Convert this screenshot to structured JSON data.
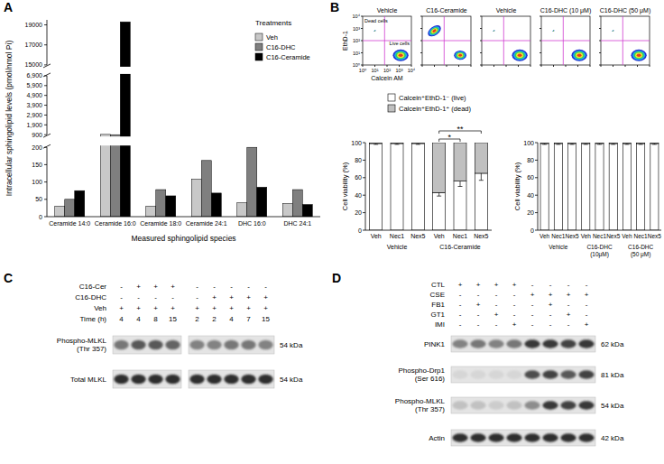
{
  "panel_labels": [
    "A",
    "B",
    "C",
    "D"
  ],
  "chart_data": [
    {
      "type": "bar",
      "y_label": "Intracellular sphingolipid levels (pmol/nmol Pi)",
      "x_label": "Measured sphingolipid species",
      "legend_title": "Treatments",
      "legend": "upper right",
      "categories": [
        "Ceramide 14:0",
        "Ceramide 16:0",
        "Ceramide 18:0",
        "Ceramide 24:1",
        "DHC 16:0",
        "DHC 24:1"
      ],
      "series": [
        {
          "name": "Veh",
          "color": "#c8c8c8",
          "values": [
            30,
            930,
            30,
            108,
            40,
            38
          ]
        },
        {
          "name": "C16-DHC",
          "color": "#7f7f7f",
          "values": [
            50,
            880,
            78,
            162,
            200,
            78
          ]
        },
        {
          "name": "C16-Ceramide",
          "color": "#000000",
          "values": [
            75,
            19300,
            60,
            68,
            85,
            35
          ]
        }
      ],
      "ylim": [
        0,
        19500
      ],
      "y_breaks": [
        [
          200,
          900
        ],
        [
          6900,
          15000
        ]
      ],
      "yticks": [
        0,
        50,
        100,
        150,
        200,
        900,
        {
          "value": 1900,
          "label": "1,900"
        },
        {
          "value": 2900,
          "label": "2,900"
        },
        {
          "value": 3900,
          "label": "3,900"
        },
        {
          "value": 4900,
          "label": "4,900"
        },
        {
          "value": 5900,
          "label": "5,900"
        },
        {
          "value": 6900,
          "label": "6,900"
        },
        15000,
        17000,
        19000
      ]
    },
    {
      "type": "bar",
      "stacked": true,
      "y_label": "Cell viability (%)",
      "legend": "top",
      "categories": [
        "Veh",
        "Nec1",
        "Nex5",
        "Veh",
        "Nec1",
        "Nex5"
      ],
      "groups": [
        "Vehicle",
        "C16-Ceramide"
      ],
      "series": [
        {
          "name": "Calcein⁺EthD-1⁻ (live)",
          "color": "#ffffff",
          "values": [
            99,
            99,
            99,
            43,
            56,
            65
          ],
          "errors": [
            1,
            1,
            1,
            4,
            6,
            8
          ]
        },
        {
          "name": "Calcein⁺EthD-1⁺ (dead)",
          "color": "#c0c0c0",
          "values": [
            1,
            1,
            1,
            57,
            44,
            35
          ]
        }
      ],
      "ylim": [
        0,
        100
      ],
      "yticks": [
        0,
        20,
        40,
        60,
        80,
        100
      ],
      "annotations": [
        {
          "text": "*",
          "from": 3,
          "to": 4
        },
        {
          "text": "**",
          "from": 3,
          "to": 5
        }
      ]
    },
    {
      "type": "bar",
      "stacked": true,
      "y_label": "Cell viability (%)",
      "categories": [
        "Veh",
        "Nec1",
        "Nex5",
        "Veh",
        "Nec1",
        "Nex5",
        "Veh",
        "Nec1",
        "Nex5"
      ],
      "groups": [
        "Vehicle",
        "C16-DHC (10μM)",
        "C16-DHC (50 μM)"
      ],
      "series": [
        {
          "color": "#ffffff",
          "values": [
            99,
            99,
            99,
            99,
            99,
            99,
            99,
            99,
            99
          ],
          "errors": [
            1,
            1,
            1,
            1,
            1,
            1,
            1,
            1,
            1
          ]
        },
        {
          "color": "#c0c0c0",
          "values": [
            1,
            1,
            1,
            1,
            1,
            1,
            1,
            1,
            1
          ]
        }
      ],
      "ylim": [
        0,
        100
      ],
      "yticks": [
        0,
        20,
        40,
        60,
        80,
        100
      ]
    }
  ],
  "flow_cytometry": {
    "x_label": "Calcein AM",
    "y_label": "EthD-1",
    "ticks": [
      "10⁰",
      "10¹",
      "10²",
      "10³",
      "10⁴"
    ],
    "gate_labels": [
      "Dead cells",
      "Live cells"
    ],
    "plots": [
      {
        "title": "Vehicle",
        "dead_percent": 1
      },
      {
        "title": "C16-Ceramide",
        "dead_percent": 57
      },
      {
        "title": "Vehicle",
        "dead_percent": 1
      },
      {
        "title": "C16-DHC (10 μM)",
        "dead_percent": 1
      },
      {
        "title": "C16-DHC (50 μM)",
        "dead_percent": 1
      }
    ]
  },
  "blot_c": {
    "conditions": [
      {
        "label": "C16-Cer",
        "values": [
          "-",
          "+",
          "+",
          "+",
          "-",
          "-",
          "-",
          "-",
          "-"
        ]
      },
      {
        "label": "C16-DHC",
        "values": [
          "-",
          "-",
          "-",
          "-",
          "-",
          "+",
          "+",
          "+",
          "+"
        ]
      },
      {
        "label": "Veh",
        "values": [
          "+",
          "+",
          "+",
          "+",
          "+",
          "+",
          "+",
          "+",
          "+"
        ]
      },
      {
        "label": "Time (h)",
        "values": [
          4,
          4,
          8,
          15,
          2,
          2,
          4,
          7,
          15
        ]
      }
    ],
    "bands": [
      {
        "label": "Phospho-MLKL (Thr 357)",
        "size": "54 kDa",
        "intensity": [
          0.55,
          0.7,
          0.7,
          0.65,
          0.5,
          0.5,
          0.55,
          0.55,
          0.5
        ]
      },
      {
        "label": "Total MLKL",
        "size": "54 kDa",
        "intensity": [
          0.9,
          0.9,
          0.9,
          0.9,
          0.9,
          0.9,
          0.9,
          0.9,
          0.9
        ]
      }
    ]
  },
  "blot_d": {
    "conditions": [
      {
        "label": "CTL",
        "values": [
          "+",
          "+",
          "+",
          "+",
          "-",
          "-",
          "-",
          "-"
        ]
      },
      {
        "label": "CSE",
        "values": [
          "-",
          "-",
          "-",
          "-",
          "+",
          "+",
          "+",
          "+"
        ]
      },
      {
        "label": "FB1",
        "values": [
          "-",
          "+",
          "-",
          "-",
          "-",
          "+",
          "-",
          "-"
        ]
      },
      {
        "label": "GT1",
        "values": [
          "-",
          "-",
          "+",
          "-",
          "-",
          "-",
          "+",
          "-"
        ]
      },
      {
        "label": "IMI",
        "values": [
          "-",
          "-",
          "-",
          "+",
          "-",
          "-",
          "-",
          "+"
        ]
      }
    ],
    "bands": [
      {
        "label": "PINK1",
        "size": "62 kDa",
        "intensity": [
          0.5,
          0.55,
          0.5,
          0.55,
          0.85,
          0.85,
          0.8,
          0.85
        ]
      },
      {
        "label": "Phospho-Drp1 (Ser 616)",
        "size": "81 kDa",
        "intensity": [
          0.1,
          0.1,
          0.1,
          0.1,
          0.75,
          0.8,
          0.7,
          0.8
        ]
      },
      {
        "label": "Phospho-MLKL (Thr 357)",
        "size": "54 kDa",
        "intensity": [
          0.2,
          0.2,
          0.15,
          0.2,
          0.45,
          0.85,
          0.8,
          0.85
        ]
      },
      {
        "label": "Actin",
        "size": "42 kDa",
        "intensity": [
          0.9,
          0.9,
          0.9,
          0.9,
          0.9,
          0.9,
          0.9,
          0.9
        ]
      }
    ]
  }
}
